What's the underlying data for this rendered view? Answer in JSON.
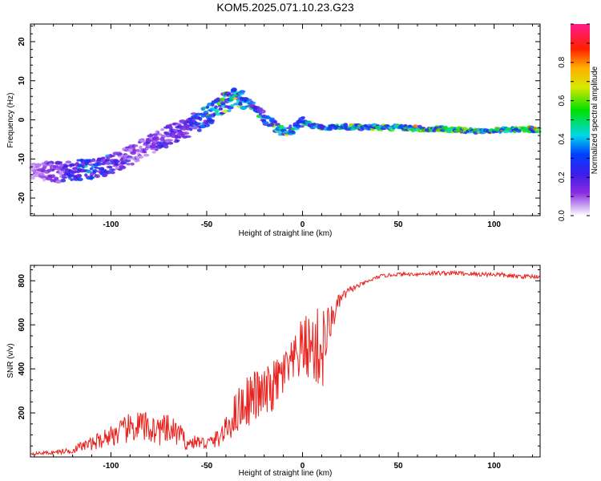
{
  "title": "KOM5.2025.071.10.23.G23",
  "colors": {
    "snr_line": "#e8231f",
    "axes": "#000000"
  },
  "chart_data": [
    {
      "type": "heatmap",
      "xlabel": "Height of straight line (km)",
      "ylabel": "Frequency (Hz)",
      "xlim": [
        -142,
        124
      ],
      "ylim": [
        -24.5,
        24.5
      ],
      "x_ticks": [
        "-100",
        "-50",
        "0",
        "50",
        "100"
      ],
      "y_ticks": [
        "-20",
        "-10",
        "0",
        "10",
        "20"
      ],
      "colorbar": {
        "label": "Normalized spectral amplitude",
        "range": [
          0,
          1
        ],
        "ticks": [
          "0.0",
          "0.2",
          "0.4",
          "0.6",
          "0.8"
        ],
        "colormap": "rainbow (purple-blue-cyan-green-yellow-red-magenta)"
      },
      "ridge": {
        "x": [
          -140,
          -130,
          -120,
          -110,
          -100,
          -90,
          -80,
          -70,
          -60,
          -50,
          -40,
          -35,
          -30,
          -25,
          -20,
          -15,
          -10,
          -5,
          0,
          5,
          10,
          20,
          30,
          40,
          50,
          60,
          70,
          80,
          90,
          95,
          100,
          110,
          124
        ],
        "frequency": [
          -13,
          -13.5,
          -13,
          -12.5,
          -11.5,
          -9,
          -6.5,
          -4,
          -2,
          1,
          4.5,
          5.5,
          5,
          3,
          0.5,
          -1.5,
          -3,
          -2.5,
          -0.5,
          -1.5,
          -2,
          -1.8,
          -1.8,
          -2,
          -2,
          -2.2,
          -2.3,
          -2.5,
          -3,
          -2.8,
          -2.5,
          -2.5,
          -2.5
        ],
        "amplitude": [
          0.1,
          0.2,
          0.35,
          0.4,
          0.3,
          0.2,
          0.2,
          0.25,
          0.3,
          0.5,
          0.55,
          0.6,
          0.5,
          0.45,
          0.4,
          0.5,
          0.55,
          0.5,
          0.45,
          0.5,
          0.55,
          0.6,
          0.6,
          0.62,
          0.65,
          0.68,
          0.72,
          0.72,
          0.75,
          0.7,
          0.72,
          0.7,
          0.7
        ]
      }
    },
    {
      "type": "line",
      "xlabel": "Height of straight line (km)",
      "ylabel": "SNR (v/v)",
      "xlim": [
        -142,
        124
      ],
      "ylim": [
        0,
        870
      ],
      "x_ticks": [
        "-100",
        "-50",
        "0",
        "50",
        "100"
      ],
      "y_ticks": [
        "200",
        "400",
        "600",
        "800"
      ],
      "series": [
        {
          "x": [
            -142,
            -130,
            -120,
            -115,
            -110,
            -105,
            -100,
            -95,
            -90,
            -85,
            -80,
            -75,
            -70,
            -65,
            -60,
            -55,
            -50,
            -45,
            -40,
            -35,
            -30,
            -25,
            -20,
            -15,
            -10,
            -5,
            0,
            5,
            10,
            15,
            20,
            25,
            30,
            35,
            40,
            50,
            60,
            70,
            80,
            90,
            100,
            110,
            124
          ],
          "y": [
            15,
            20,
            30,
            50,
            60,
            80,
            100,
            110,
            130,
            140,
            130,
            120,
            120,
            110,
            60,
            70,
            60,
            80,
            120,
            200,
            250,
            280,
            280,
            320,
            380,
            420,
            500,
            500,
            480,
            620,
            720,
            760,
            780,
            800,
            820,
            830,
            830,
            835,
            835,
            830,
            830,
            820,
            820
          ],
          "noise": [
            5,
            10,
            15,
            25,
            30,
            40,
            50,
            60,
            70,
            75,
            70,
            70,
            70,
            60,
            30,
            30,
            30,
            40,
            60,
            100,
            120,
            120,
            120,
            120,
            110,
            110,
            140,
            160,
            220,
            70,
            30,
            15,
            10,
            8,
            8,
            8,
            8,
            10,
            10,
            10,
            12,
            10,
            10
          ]
        }
      ]
    }
  ]
}
